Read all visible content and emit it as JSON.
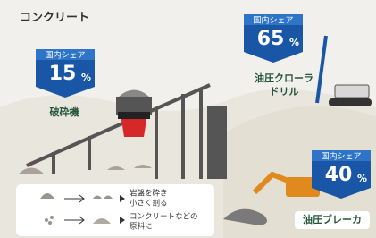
{
  "title": "コンクリート",
  "machines": [
    {
      "badge_label": "国内シェア",
      "share": "15",
      "unit": "%",
      "name_lines": [
        "破砕機"
      ]
    },
    {
      "badge_label": "国内シェア",
      "share": "65",
      "unit": "%",
      "name_lines": [
        "油圧クローラ",
        "ドリル"
      ]
    },
    {
      "badge_label": "国内シェア",
      "share": "40",
      "unit": "%",
      "name_lines": [
        "油圧ブレーカ"
      ]
    }
  ],
  "legend": [
    {
      "lines": [
        "岩盤を砕き",
        "小さく割る"
      ]
    },
    {
      "lines": [
        "コンクリートなどの",
        "原料に"
      ]
    }
  ]
}
